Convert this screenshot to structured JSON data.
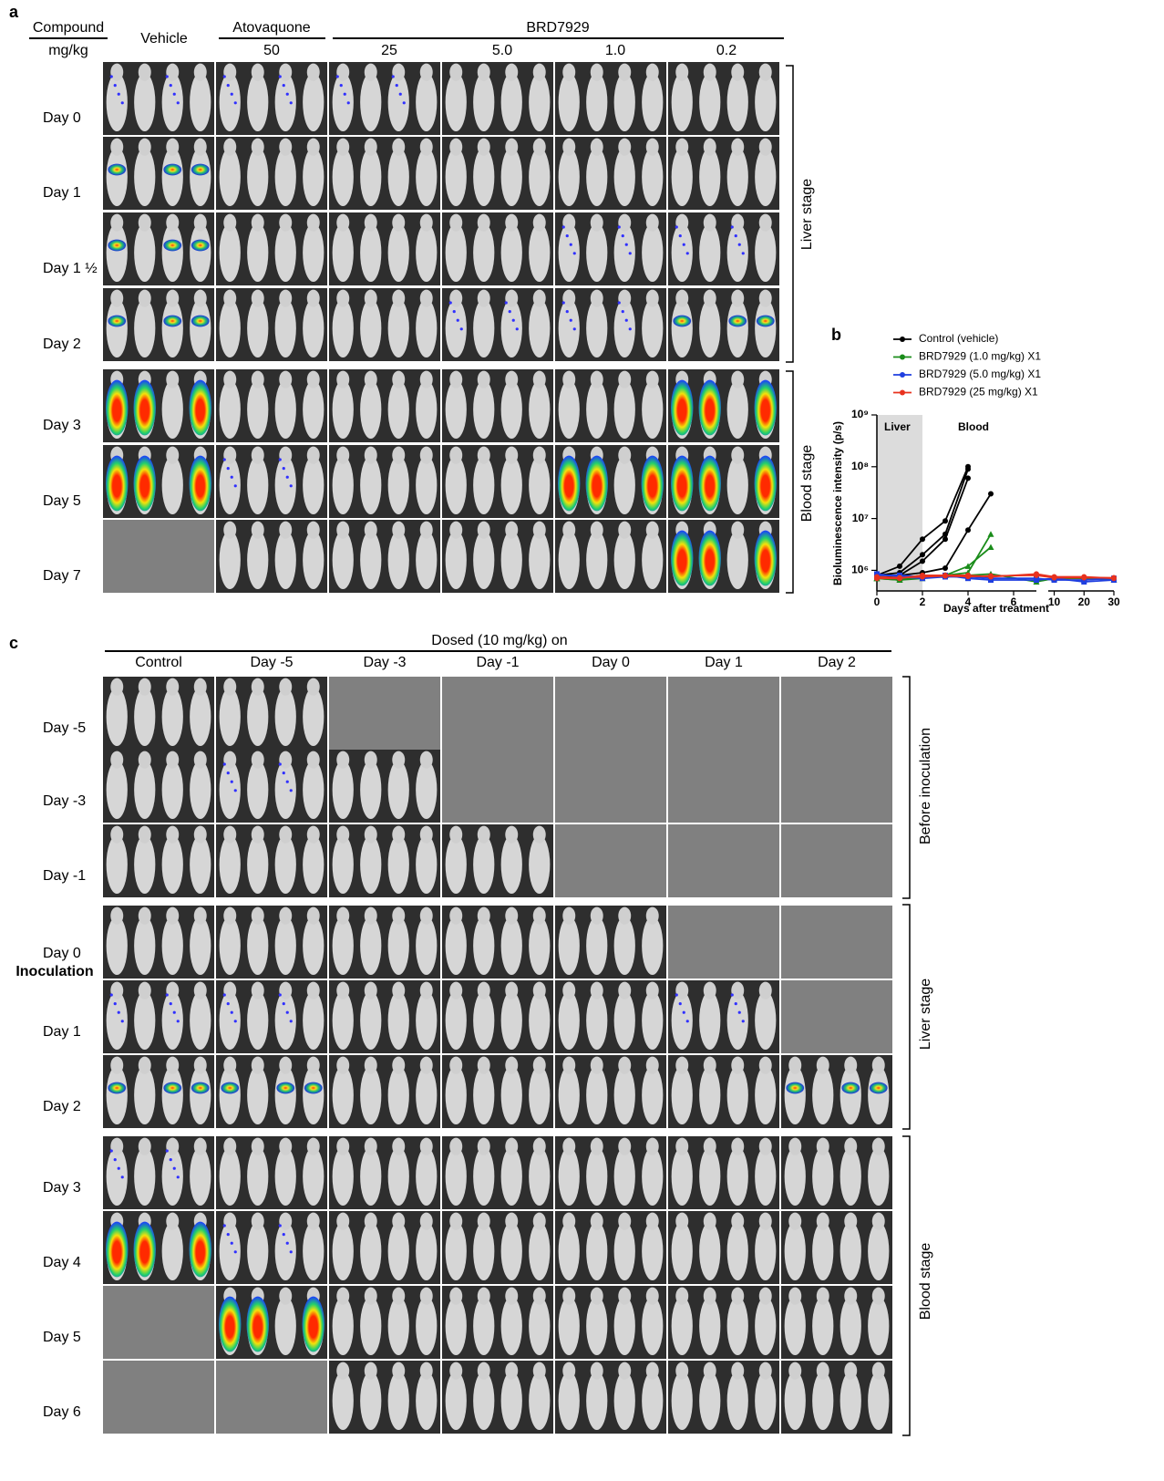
{
  "panel_a": {
    "label": "a",
    "compound_label": "Compound",
    "dose_label": "mg/kg",
    "groups": [
      {
        "name": "Vehicle"
      },
      {
        "name": "Atovaquone",
        "doses": [
          "50"
        ]
      },
      {
        "name": "BRD7929",
        "doses": [
          "25",
          "5.0",
          "1.0",
          "0.2"
        ]
      }
    ],
    "rows": [
      "Day 0",
      "Day 1",
      "Day 1 ½",
      "Day 2",
      "Day 3",
      "Day 5",
      "Day 7"
    ],
    "stages": [
      "Liver stage",
      "Blood stage"
    ]
  },
  "chart_data": {
    "type": "line",
    "label": "b",
    "ylabel": "Bioluminescence intensity (p/s)",
    "xlabel": "Days after treatment",
    "annotations": [
      "Liver",
      "Blood"
    ],
    "liver_span": [
      0,
      2
    ],
    "x": [
      0,
      1,
      2,
      3,
      4,
      5,
      7,
      10,
      20,
      30
    ],
    "x_segments": [
      [
        0,
        7
      ],
      [
        8,
        30
      ]
    ],
    "xticks": [
      0,
      2,
      4,
      6,
      10,
      20,
      30
    ],
    "yscale": "log",
    "ylim": [
      400000,
      1000000000
    ],
    "yticks": [
      {
        "value": 1000000,
        "label": "10⁶"
      },
      {
        "value": 10000000,
        "label": "10⁷"
      },
      {
        "value": 100000000,
        "label": "10⁸"
      },
      {
        "value": 1000000000,
        "label": "10⁹"
      }
    ],
    "series": [
      {
        "name": "Control (vehicle)",
        "color": "#000000",
        "marker": "circle",
        "mice": [
          [
            800000,
            1200000,
            4000000,
            9000000,
            100000000,
            null,
            null,
            null,
            null,
            null
          ],
          [
            800000,
            900000,
            2000000,
            5000000,
            90000000,
            null,
            null,
            null,
            null,
            null
          ],
          [
            700000,
            800000,
            1500000,
            4000000,
            60000000,
            null,
            null,
            null,
            null,
            null
          ],
          [
            800000,
            800000,
            900000,
            1100000,
            6000000,
            30000000,
            null,
            null,
            null,
            null
          ]
        ]
      },
      {
        "name": "BRD7929 (1.0 mg/kg) X1",
        "color": "#1a8c1a",
        "marker": "triangle",
        "mice": [
          [
            700000,
            700000,
            800000,
            800000,
            900000,
            5000000,
            null,
            null,
            null,
            null
          ],
          [
            700000,
            650000,
            700000,
            800000,
            1200000,
            2800000,
            null,
            null,
            null,
            null
          ],
          [
            700000,
            650000,
            800000,
            800000,
            800000,
            850000,
            600000,
            700000,
            700000,
            650000
          ]
        ]
      },
      {
        "name": "BRD7929 (5.0 mg/kg) X1",
        "color": "#1f3fe0",
        "marker": "square",
        "mice": [
          [
            800000,
            800000,
            750000,
            800000,
            700000,
            650000,
            650000,
            700000,
            600000,
            650000
          ],
          [
            850000,
            750000,
            700000,
            750000,
            750000,
            700000,
            700000,
            650000,
            650000,
            700000
          ]
        ]
      },
      {
        "name": "BRD7929 (25 mg/kg) X1",
        "color": "#e8321e",
        "marker": "circle",
        "mice": [
          [
            700000,
            700000,
            800000,
            800000,
            800000,
            750000,
            850000,
            750000,
            750000,
            700000
          ],
          [
            750000,
            720000,
            750000,
            780000,
            760000,
            780000,
            800000,
            720000,
            720000,
            720000
          ]
        ]
      }
    ]
  },
  "panel_c": {
    "label": "c",
    "header": "Dosed (10 mg/kg) on",
    "columns": [
      "Control",
      "Day -5",
      "Day -3",
      "Day -1",
      "Day 0",
      "Day 1",
      "Day 2"
    ],
    "rows": [
      "Day -5",
      "Day -3",
      "Day -1",
      "Day 0",
      "Day 1",
      "Day 2",
      "Day 3",
      "Day 4",
      "Day 5",
      "Day 6"
    ],
    "inoculation_label": "Inoculation",
    "stages": [
      "Before inoculation",
      "Liver stage",
      "Blood stage"
    ]
  }
}
